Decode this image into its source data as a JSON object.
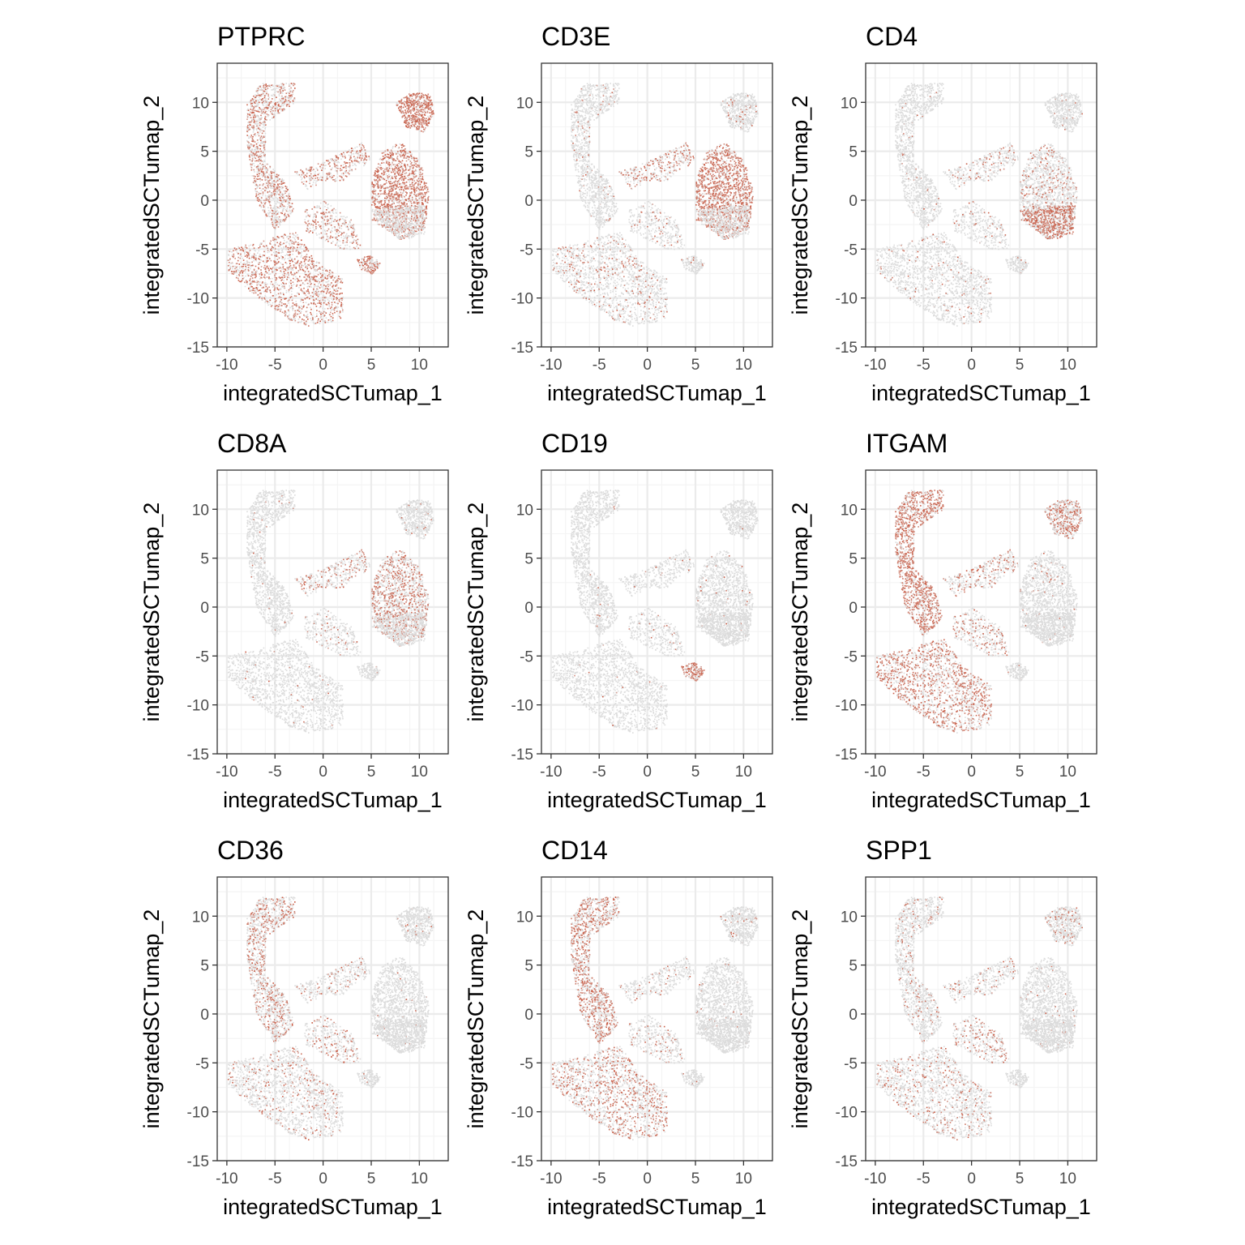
{
  "colors": {
    "low": "#dcdcdc",
    "high": "#c8553d",
    "grid_major": "#ebebeb",
    "grid_minor": "#f4f4f4",
    "panel_border": "#333333",
    "tick_label": "#4d4d4d"
  },
  "chart_data": [
    {
      "type": "scatter",
      "title": "PTPRC",
      "xlabel": "integratedSCTumap_1",
      "ylabel": "integratedSCTumap_2",
      "xlim": [
        -11,
        13
      ],
      "ylim": [
        -15,
        14
      ],
      "xticks": [
        -10,
        -5,
        0,
        5,
        10
      ],
      "yticks": [
        -15,
        -10,
        -5,
        0,
        5,
        10
      ],
      "x_tick_labels": [
        "-10",
        "-5",
        "0",
        "5",
        "10"
      ],
      "y_tick_labels": [
        "-15",
        "-10",
        "-5",
        "0",
        "5",
        "10"
      ],
      "grid": true,
      "color_scale": [
        "#dcdcdc",
        "#c8553d"
      ],
      "expression_by_cluster": {
        "myeloid_top": 0.5,
        "myeloid_bottom": 0.6,
        "bridge": 0.55,
        "t_cells": 0.85,
        "t_top": 0.9,
        "small_right": 0.65,
        "center": 0.45
      }
    },
    {
      "type": "scatter",
      "title": "CD3E",
      "xlabel": "integratedSCTumap_1",
      "ylabel": "integratedSCTumap_2",
      "xlim": [
        -11,
        13
      ],
      "ylim": [
        -15,
        14
      ],
      "xticks": [
        -10,
        -5,
        0,
        5,
        10
      ],
      "yticks": [
        -15,
        -10,
        -5,
        0,
        5,
        10
      ],
      "x_tick_labels": [
        "-10",
        "-5",
        "0",
        "5",
        "10"
      ],
      "y_tick_labels": [
        "-15",
        "-10",
        "-5",
        "0",
        "5",
        "10"
      ],
      "grid": true,
      "color_scale": [
        "#dcdcdc",
        "#c8553d"
      ],
      "expression_by_cluster": {
        "myeloid_top": 0.05,
        "myeloid_bottom": 0.15,
        "bridge": 0.45,
        "t_cells": 0.85,
        "t_top": 0.1,
        "small_right": 0.05,
        "center": 0.15
      }
    },
    {
      "type": "scatter",
      "title": "CD4",
      "xlabel": "integratedSCTumap_1",
      "ylabel": "integratedSCTumap_2",
      "xlim": [
        -11,
        13
      ],
      "ylim": [
        -15,
        14
      ],
      "xticks": [
        -10,
        -5,
        0,
        5,
        10
      ],
      "yticks": [
        -15,
        -10,
        -5,
        0,
        5,
        10
      ],
      "x_tick_labels": [
        "-10",
        "-5",
        "0",
        "5",
        "10"
      ],
      "y_tick_labels": [
        "-15",
        "-10",
        "-5",
        "0",
        "5",
        "10"
      ],
      "grid": true,
      "color_scale": [
        "#dcdcdc",
        "#c8553d"
      ],
      "expression_by_cluster": {
        "myeloid_top": 0.03,
        "myeloid_bottom": 0.05,
        "bridge": 0.15,
        "t_cells": 0.2,
        "t_cd4": 0.85,
        "t_top": 0.03,
        "small_right": 0.03,
        "center": 0.1
      }
    },
    {
      "type": "scatter",
      "title": "CD8A",
      "xlabel": "integratedSCTumap_1",
      "ylabel": "integratedSCTumap_2",
      "xlim": [
        -11,
        13
      ],
      "ylim": [
        -15,
        14
      ],
      "xticks": [
        -10,
        -5,
        0,
        5,
        10
      ],
      "yticks": [
        -15,
        -10,
        -5,
        0,
        5,
        10
      ],
      "x_tick_labels": [
        "-10",
        "-5",
        "0",
        "5",
        "10"
      ],
      "y_tick_labels": [
        "-15",
        "-10",
        "-5",
        "0",
        "5",
        "10"
      ],
      "grid": true,
      "color_scale": [
        "#dcdcdc",
        "#c8553d"
      ],
      "expression_by_cluster": {
        "myeloid_top": 0.02,
        "myeloid_bottom": 0.02,
        "bridge": 0.3,
        "t_cells": 0.45,
        "t_cd4": 0.05,
        "t_top": 0.02,
        "small_right": 0.02,
        "center": 0.1
      }
    },
    {
      "type": "scatter",
      "title": "CD19",
      "xlabel": "integratedSCTumap_1",
      "ylabel": "integratedSCTumap_2",
      "xlim": [
        -11,
        13
      ],
      "ylim": [
        -15,
        14
      ],
      "xticks": [
        -10,
        -5,
        0,
        5,
        10
      ],
      "yticks": [
        -15,
        -10,
        -5,
        0,
        5,
        10
      ],
      "x_tick_labels": [
        "-10",
        "-5",
        "0",
        "5",
        "10"
      ],
      "y_tick_labels": [
        "-15",
        "-10",
        "-5",
        "0",
        "5",
        "10"
      ],
      "grid": true,
      "color_scale": [
        "#dcdcdc",
        "#c8553d"
      ],
      "expression_by_cluster": {
        "myeloid_top": 0.01,
        "myeloid_bottom": 0.01,
        "bridge": 0.02,
        "t_cells": 0.02,
        "t_top": 0.01,
        "small_right": 0.75,
        "center": 0.05
      }
    },
    {
      "type": "scatter",
      "title": "ITGAM",
      "xlabel": "integratedSCTumap_1",
      "ylabel": "integratedSCTumap_2",
      "xlim": [
        -11,
        13
      ],
      "ylim": [
        -15,
        14
      ],
      "xticks": [
        -10,
        -5,
        0,
        5,
        10
      ],
      "yticks": [
        -15,
        -10,
        -5,
        0,
        5,
        10
      ],
      "x_tick_labels": [
        "-10",
        "-5",
        "0",
        "5",
        "10"
      ],
      "y_tick_labels": [
        "-15",
        "-10",
        "-5",
        "0",
        "5",
        "10"
      ],
      "grid": true,
      "color_scale": [
        "#dcdcdc",
        "#c8553d"
      ],
      "expression_by_cluster": {
        "myeloid_top": 0.8,
        "myeloid_bottom": 0.6,
        "bridge": 0.35,
        "t_cells": 0.03,
        "t_top": 0.55,
        "small_right": 0.03,
        "center": 0.35
      }
    },
    {
      "type": "scatter",
      "title": "CD36",
      "xlabel": "integratedSCTumap_1",
      "ylabel": "integratedSCTumap_2",
      "xlim": [
        -11,
        13
      ],
      "ylim": [
        -15,
        14
      ],
      "xticks": [
        -10,
        -5,
        0,
        5,
        10
      ],
      "yticks": [
        -15,
        -10,
        -5,
        0,
        5,
        10
      ],
      "x_tick_labels": [
        "-10",
        "-5",
        "0",
        "5",
        "10"
      ],
      "y_tick_labels": [
        "-15",
        "-10",
        "-5",
        "0",
        "5",
        "10"
      ],
      "grid": true,
      "color_scale": [
        "#dcdcdc",
        "#c8553d"
      ],
      "expression_by_cluster": {
        "myeloid_top": 0.35,
        "myeloid_bottom": 0.15,
        "bridge": 0.15,
        "t_cells": 0.02,
        "t_top": 0.05,
        "small_right": 0.02,
        "center": 0.25
      }
    },
    {
      "type": "scatter",
      "title": "CD14",
      "xlabel": "integratedSCTumap_1",
      "ylabel": "integratedSCTumap_2",
      "xlim": [
        -11,
        13
      ],
      "ylim": [
        -15,
        14
      ],
      "xticks": [
        -10,
        -5,
        0,
        5,
        10
      ],
      "yticks": [
        -15,
        -10,
        -5,
        0,
        5,
        10
      ],
      "x_tick_labels": [
        "-10",
        "-5",
        "0",
        "5",
        "10"
      ],
      "y_tick_labels": [
        "-15",
        "-10",
        "-5",
        "0",
        "5",
        "10"
      ],
      "grid": true,
      "color_scale": [
        "#dcdcdc",
        "#c8553d"
      ],
      "expression_by_cluster": {
        "myeloid_top": 0.55,
        "myeloid_bottom": 0.4,
        "bridge": 0.1,
        "t_cells": 0.02,
        "t_top": 0.05,
        "small_right": 0.02,
        "center": 0.15
      }
    },
    {
      "type": "scatter",
      "title": "SPP1",
      "xlabel": "integratedSCTumap_1",
      "ylabel": "integratedSCTumap_2",
      "xlim": [
        -11,
        13
      ],
      "ylim": [
        -15,
        14
      ],
      "xticks": [
        -10,
        -5,
        0,
        5,
        10
      ],
      "yticks": [
        -15,
        -10,
        -5,
        0,
        5,
        10
      ],
      "x_tick_labels": [
        "-10",
        "-5",
        "0",
        "5",
        "10"
      ],
      "y_tick_labels": [
        "-15",
        "-10",
        "-5",
        "0",
        "5",
        "10"
      ],
      "grid": true,
      "color_scale": [
        "#dcdcdc",
        "#c8553d"
      ],
      "expression_by_cluster": {
        "myeloid_top": 0.1,
        "myeloid_bottom": 0.2,
        "bridge": 0.15,
        "t_cells": 0.02,
        "t_top": 0.15,
        "small_right": 0.02,
        "center": 0.35
      }
    }
  ]
}
